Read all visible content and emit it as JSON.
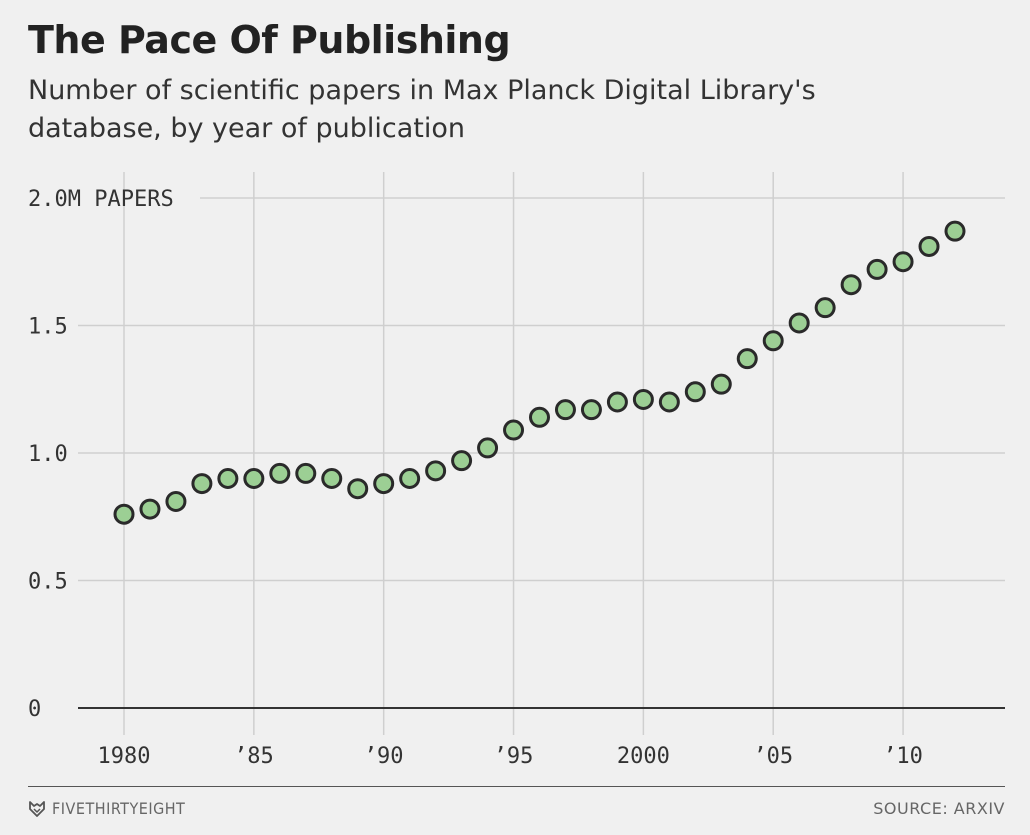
{
  "header": {
    "title": "The Pace Of Publishing",
    "subtitle": "Number of scientific papers in Max Planck Digital Library's database, by year of publication"
  },
  "footer": {
    "brand": "FIVETHIRTYEIGHT",
    "source": "SOURCE: ARXIV"
  },
  "colors": {
    "marker_fill": "#9ccf94",
    "marker_stroke": "#2a2a2a",
    "grid": "#cfcfcf",
    "baseline": "#333333"
  },
  "chart_data": {
    "type": "scatter",
    "title": "The Pace Of Publishing",
    "subtitle": "Number of scientific papers in Max Planck Digital Library's database, by year of publication",
    "xlabel": "",
    "ylabel": "",
    "unit": "M papers",
    "xlim": [
      1980,
      2012
    ],
    "ylim": [
      0,
      2.0
    ],
    "grid": true,
    "legend": "none",
    "x_ticks": [
      1980,
      1985,
      1990,
      1995,
      2000,
      2005,
      2010
    ],
    "x_tick_labels": [
      "1980",
      "’85",
      "’90",
      "’95",
      "2000",
      "’05",
      "’10"
    ],
    "y_ticks": [
      0,
      0.5,
      1.0,
      1.5,
      2.0
    ],
    "y_tick_labels": [
      "0",
      "0.5",
      "1.0",
      "1.5",
      "2.0M PAPERS"
    ],
    "x": [
      1980,
      1981,
      1982,
      1983,
      1984,
      1985,
      1986,
      1987,
      1988,
      1989,
      1990,
      1991,
      1992,
      1993,
      1994,
      1995,
      1996,
      1997,
      1998,
      1999,
      2000,
      2001,
      2002,
      2003,
      2004,
      2005,
      2006,
      2007,
      2008,
      2009,
      2010,
      2011,
      2012
    ],
    "y": [
      0.76,
      0.78,
      0.81,
      0.88,
      0.9,
      0.9,
      0.92,
      0.92,
      0.9,
      0.86,
      0.88,
      0.9,
      0.93,
      0.97,
      1.02,
      1.09,
      1.14,
      1.17,
      1.17,
      1.2,
      1.21,
      1.2,
      1.24,
      1.27,
      1.37,
      1.44,
      1.51,
      1.57,
      1.66,
      1.72,
      1.75,
      1.81,
      1.87
    ]
  }
}
